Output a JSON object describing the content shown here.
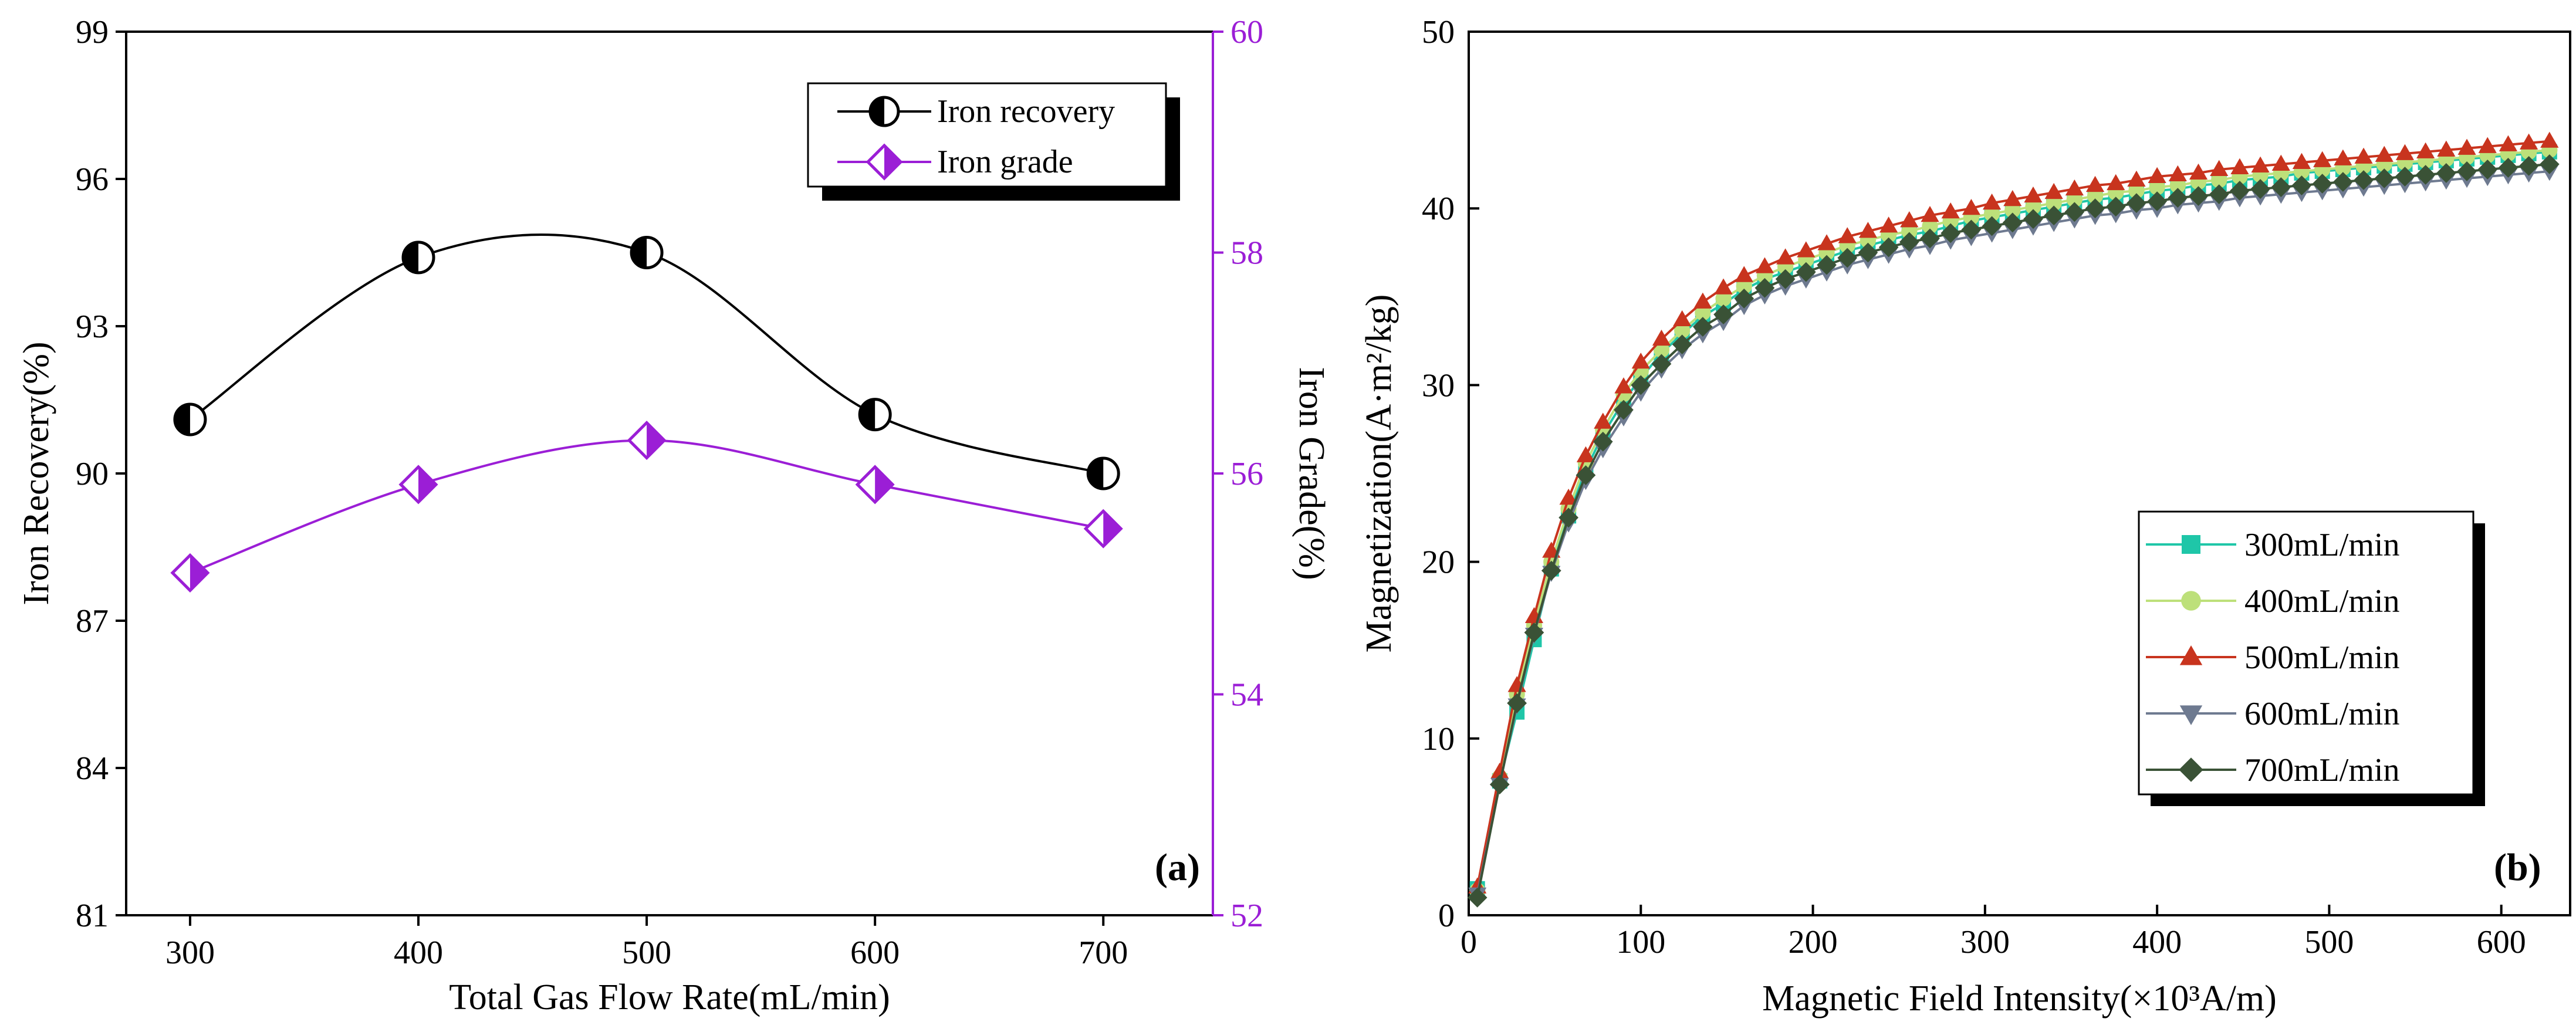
{
  "colors": {
    "recovery": "#000000",
    "grade": "#9b1ed6",
    "s300": "#1fc6a8",
    "s400": "#bde07a",
    "s500": "#c8341e",
    "s600": "#6e7a90",
    "s700": "#3a5236"
  },
  "chart_data": [
    {
      "type": "line",
      "panel_label": "(a)",
      "xlabel": "Total Gas Flow Rate(mL/min)",
      "ylabel_left": "Iron Recovery(%)",
      "ylabel_right": "Iron Grade(%)",
      "x": [
        300,
        400,
        500,
        600,
        700
      ],
      "x_ticks": [
        "300",
        "400",
        "500",
        "600",
        "700"
      ],
      "xlim": [
        272,
        748
      ],
      "ylim_left": [
        81,
        99
      ],
      "y_ticks_left": [
        "81",
        "84",
        "87",
        "90",
        "93",
        "96",
        "99"
      ],
      "ylim_right": [
        52,
        60
      ],
      "y_ticks_right": [
        "52",
        "54",
        "56",
        "58",
        "60"
      ],
      "legend_position": "top-right",
      "series": [
        {
          "name": "Iron recovery",
          "axis": "left",
          "marker": "half-circle",
          "values": [
            91.1,
            94.4,
            94.5,
            91.2,
            90.0
          ]
        },
        {
          "name": "Iron grade",
          "axis": "right",
          "marker": "half-diamond",
          "values": [
            55.1,
            55.9,
            56.3,
            55.9,
            55.5
          ]
        }
      ]
    },
    {
      "type": "line",
      "panel_label": "(b)",
      "xlabel": "Magnetic Field Intensity(×10³A/m)",
      "ylabel": "Magnetization(A·m²/kg)",
      "xlim": [
        0,
        640
      ],
      "x_ticks": [
        "0",
        "100",
        "200",
        "300",
        "400",
        "500",
        "600"
      ],
      "ylim": [
        0,
        50
      ],
      "y_ticks": [
        "0",
        "10",
        "20",
        "30",
        "40",
        "50"
      ],
      "legend_position": "center-right",
      "x": [
        5,
        18,
        28,
        38,
        48,
        58,
        68,
        78,
        90,
        100,
        112,
        124,
        136,
        148,
        160,
        172,
        184,
        196,
        208,
        220,
        232,
        244,
        256,
        268,
        280,
        292,
        304,
        316,
        328,
        340,
        352,
        364,
        376,
        388,
        400,
        412,
        424,
        436,
        448,
        460,
        472,
        484,
        496,
        508,
        520,
        532,
        544,
        556,
        568,
        580,
        592,
        604,
        616,
        628
      ],
      "series": [
        {
          "name": "300mL/min",
          "marker": "square",
          "values": [
            1.5,
            7.6,
            11.5,
            15.6,
            19.6,
            22.6,
            25.2,
            27.2,
            29.1,
            30.4,
            31.8,
            32.9,
            33.9,
            34.6,
            35.4,
            36.0,
            36.4,
            36.8,
            37.2,
            37.6,
            37.9,
            38.2,
            38.5,
            38.7,
            39.0,
            39.3,
            39.5,
            39.7,
            39.9,
            40.1,
            40.3,
            40.5,
            40.6,
            40.8,
            41.0,
            41.1,
            41.3,
            41.4,
            41.6,
            41.7,
            41.8,
            42.0,
            42.1,
            42.2,
            42.3,
            42.4,
            42.5,
            42.6,
            42.7,
            42.8,
            42.9,
            43.0,
            43.1,
            43.2
          ]
        },
        {
          "name": "400mL/min",
          "marker": "circle",
          "values": [
            1.4,
            7.8,
            12.5,
            16.4,
            20.0,
            23.0,
            25.6,
            27.5,
            29.5,
            30.8,
            32.0,
            33.1,
            34.1,
            34.9,
            35.6,
            36.2,
            36.7,
            37.1,
            37.5,
            37.9,
            38.2,
            38.5,
            38.7,
            39.0,
            39.3,
            39.5,
            39.7,
            39.9,
            40.1,
            40.3,
            40.5,
            40.7,
            40.9,
            41.0,
            41.2,
            41.3,
            41.5,
            41.6,
            41.8,
            41.9,
            42.0,
            42.1,
            42.2,
            42.3,
            42.4,
            42.5,
            42.6,
            42.7,
            42.8,
            42.9,
            43.0,
            43.1,
            43.2,
            43.3
          ]
        },
        {
          "name": "500mL/min",
          "marker": "triangle-up",
          "values": [
            1.6,
            8.1,
            13.0,
            16.9,
            20.6,
            23.6,
            26.0,
            27.9,
            29.9,
            31.3,
            32.6,
            33.7,
            34.7,
            35.5,
            36.2,
            36.7,
            37.2,
            37.6,
            38.0,
            38.4,
            38.7,
            39.0,
            39.3,
            39.6,
            39.8,
            40.0,
            40.3,
            40.5,
            40.7,
            40.9,
            41.1,
            41.3,
            41.4,
            41.6,
            41.8,
            41.9,
            42.0,
            42.2,
            42.3,
            42.4,
            42.5,
            42.6,
            42.7,
            42.8,
            42.9,
            43.0,
            43.1,
            43.2,
            43.3,
            43.4,
            43.5,
            43.6,
            43.7,
            43.8
          ]
        },
        {
          "name": "600mL/min",
          "marker": "triangle-down",
          "values": [
            1.2,
            7.4,
            11.9,
            15.9,
            19.4,
            22.2,
            24.6,
            26.4,
            28.2,
            29.6,
            30.9,
            32.0,
            32.9,
            33.6,
            34.5,
            35.1,
            35.6,
            36.0,
            36.4,
            36.8,
            37.1,
            37.4,
            37.7,
            37.9,
            38.2,
            38.4,
            38.6,
            38.8,
            39.0,
            39.2,
            39.4,
            39.6,
            39.7,
            39.9,
            40.0,
            40.2,
            40.3,
            40.4,
            40.6,
            40.7,
            40.8,
            40.9,
            41.0,
            41.1,
            41.2,
            41.3,
            41.4,
            41.5,
            41.6,
            41.7,
            41.8,
            41.9,
            42.0,
            42.1
          ]
        },
        {
          "name": "700mL/min",
          "marker": "diamond",
          "values": [
            1.0,
            7.4,
            12.0,
            16.0,
            19.5,
            22.5,
            24.9,
            26.8,
            28.6,
            30.0,
            31.2,
            32.3,
            33.3,
            34.0,
            34.9,
            35.5,
            36.0,
            36.4,
            36.8,
            37.2,
            37.5,
            37.8,
            38.1,
            38.3,
            38.6,
            38.8,
            39.0,
            39.2,
            39.4,
            39.6,
            39.8,
            40.0,
            40.1,
            40.3,
            40.4,
            40.6,
            40.7,
            40.8,
            41.0,
            41.1,
            41.2,
            41.3,
            41.4,
            41.5,
            41.6,
            41.7,
            41.8,
            41.9,
            42.0,
            42.1,
            42.2,
            42.3,
            42.4,
            42.5
          ]
        }
      ]
    }
  ]
}
